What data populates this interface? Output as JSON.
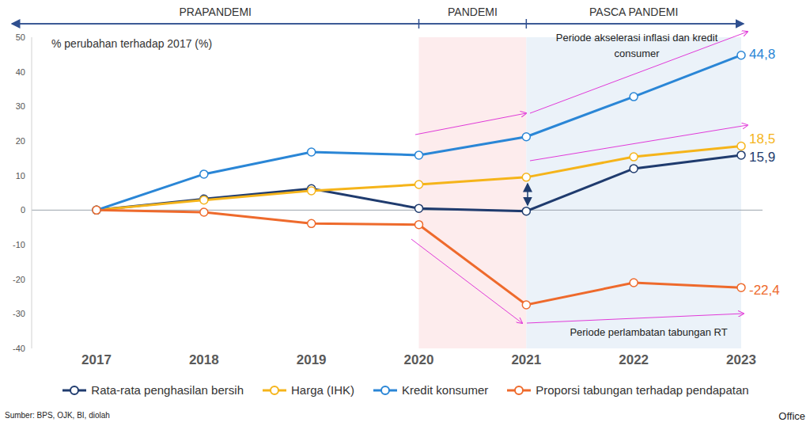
{
  "chart_data": {
    "type": "line",
    "y_label": "% perubahan terhadap 2017 (%)",
    "categories": [
      "2017",
      "2018",
      "2019",
      "2020",
      "2021",
      "2022",
      "2023"
    ],
    "series": [
      {
        "name": "Rata-rata penghasilan bersih",
        "color": "#1f3b6e",
        "values": [
          0,
          3.2,
          6.2,
          0.5,
          -0.3,
          12.0,
          15.9
        ],
        "value_labels": [
          null,
          null,
          null,
          null,
          null,
          null,
          "15,9"
        ]
      },
      {
        "name": "Harga (IHK)",
        "color": "#f5b41a",
        "values": [
          0,
          2.9,
          5.6,
          7.4,
          9.5,
          15.4,
          18.5
        ],
        "value_labels": [
          null,
          null,
          null,
          null,
          null,
          null,
          "18,5"
        ]
      },
      {
        "name": "Kredit konsumer",
        "color": "#2a86d6",
        "values": [
          0,
          10.4,
          16.8,
          15.9,
          21.2,
          32.8,
          44.8
        ],
        "value_labels": [
          null,
          null,
          null,
          null,
          null,
          null,
          "44,8"
        ]
      },
      {
        "name": "Proporsi tabungan terhadap pendapatan",
        "color": "#ee6a2c",
        "values": [
          0,
          -0.6,
          -3.9,
          -4.2,
          -27.4,
          -21.0,
          -22.4
        ],
        "value_labels": [
          null,
          null,
          null,
          null,
          null,
          null,
          "-22,4"
        ]
      }
    ],
    "ylim": [
      -40,
      50
    ],
    "yticks": [
      -40,
      -30,
      -20,
      -10,
      0,
      10,
      20,
      30,
      40,
      50
    ],
    "grid": false,
    "legend": "bottom",
    "marker": "circle",
    "periods": [
      {
        "label": "PRAPANDEMI",
        "from": "2017",
        "to": "2020"
      },
      {
        "label": "PANDEMI",
        "from": "2020",
        "to": "2021",
        "color": "#fdeced"
      },
      {
        "label": "PASCA PANDEMI",
        "from": "2021",
        "to": "2023",
        "color": "#ebf2f9"
      }
    ],
    "annotations": [
      {
        "text": "Periode akselerasi inflasi dan kredit consumer"
      },
      {
        "text": "Periode perlambatan tabungan RT"
      }
    ],
    "source": "Sumber: BPS, OJK, BI, diolah",
    "footer": "Office"
  }
}
